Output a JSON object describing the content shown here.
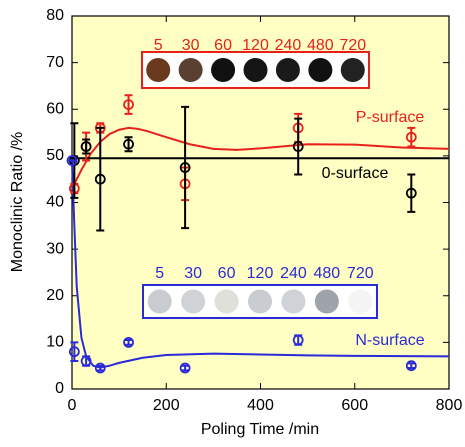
{
  "chart_data": {
    "type": "scatter",
    "x_label": "Poling Time /min",
    "y_label": "Monoclinic Ratio /%",
    "xlim": [
      0,
      800
    ],
    "ylim": [
      0,
      80
    ],
    "xticks": [
      0,
      200,
      400,
      600,
      800
    ],
    "yticks": [
      0,
      10,
      20,
      30,
      40,
      50,
      60,
      70,
      80
    ],
    "series": [
      {
        "name": "P-surface",
        "color": "#e8201c",
        "x": [
          5,
          30,
          60,
          120,
          240,
          480,
          720
        ],
        "values": [
          43,
          52,
          56,
          61,
          44,
          56,
          54
        ],
        "errors": [
          1,
          3,
          1,
          2,
          3.5,
          3,
          2
        ]
      },
      {
        "name": "0-surface",
        "color": "#000000",
        "x": [
          5,
          30,
          60,
          120,
          240,
          480,
          720
        ],
        "values": [
          49,
          52,
          45,
          52.5,
          47.5,
          52,
          42
        ],
        "errors": [
          8,
          1.5,
          11,
          1.5,
          13,
          6,
          4
        ]
      },
      {
        "name": "N-surface",
        "color": "#2a2ad8",
        "x": [
          0,
          5,
          30,
          60,
          120,
          240,
          480,
          720
        ],
        "values": [
          49,
          8,
          6,
          4.5,
          10,
          4.5,
          10.5,
          5
        ],
        "errors": [
          0,
          2,
          1,
          0.5,
          0.5,
          0.5,
          1,
          0.5
        ]
      }
    ],
    "fits": [
      {
        "color": "#e8201c",
        "x": [
          0,
          20,
          40,
          60,
          80,
          100,
          120,
          140,
          160,
          200,
          250,
          300,
          350,
          400,
          500,
          600,
          700,
          800
        ],
        "values": [
          43,
          47,
          50.5,
          53,
          54.7,
          55.6,
          56,
          55.8,
          55.3,
          54,
          52.5,
          51.5,
          51.3,
          51.6,
          52.5,
          52.4,
          51.8,
          51.5
        ]
      },
      {
        "color": "#000000",
        "x": [
          0,
          800
        ],
        "values": [
          49.5,
          49.5
        ]
      },
      {
        "color": "#2a2ad8",
        "x": [
          0,
          5,
          10,
          20,
          30,
          45,
          60,
          80,
          100,
          150,
          200,
          300,
          400,
          500,
          600,
          800
        ],
        "values": [
          49,
          35,
          22,
          11,
          7,
          5,
          4.6,
          5,
          5.6,
          6.7,
          7.3,
          7.6,
          7.4,
          7.2,
          7.1,
          7
        ]
      }
    ],
    "insets": [
      {
        "color": "#e8201c",
        "labels": [
          "5",
          "30",
          "60",
          "120",
          "240",
          "480",
          "720"
        ]
      },
      {
        "color": "#2a2ad8",
        "labels": [
          "5",
          "30",
          "60",
          "120",
          "240",
          "480",
          "720"
        ]
      }
    ]
  }
}
